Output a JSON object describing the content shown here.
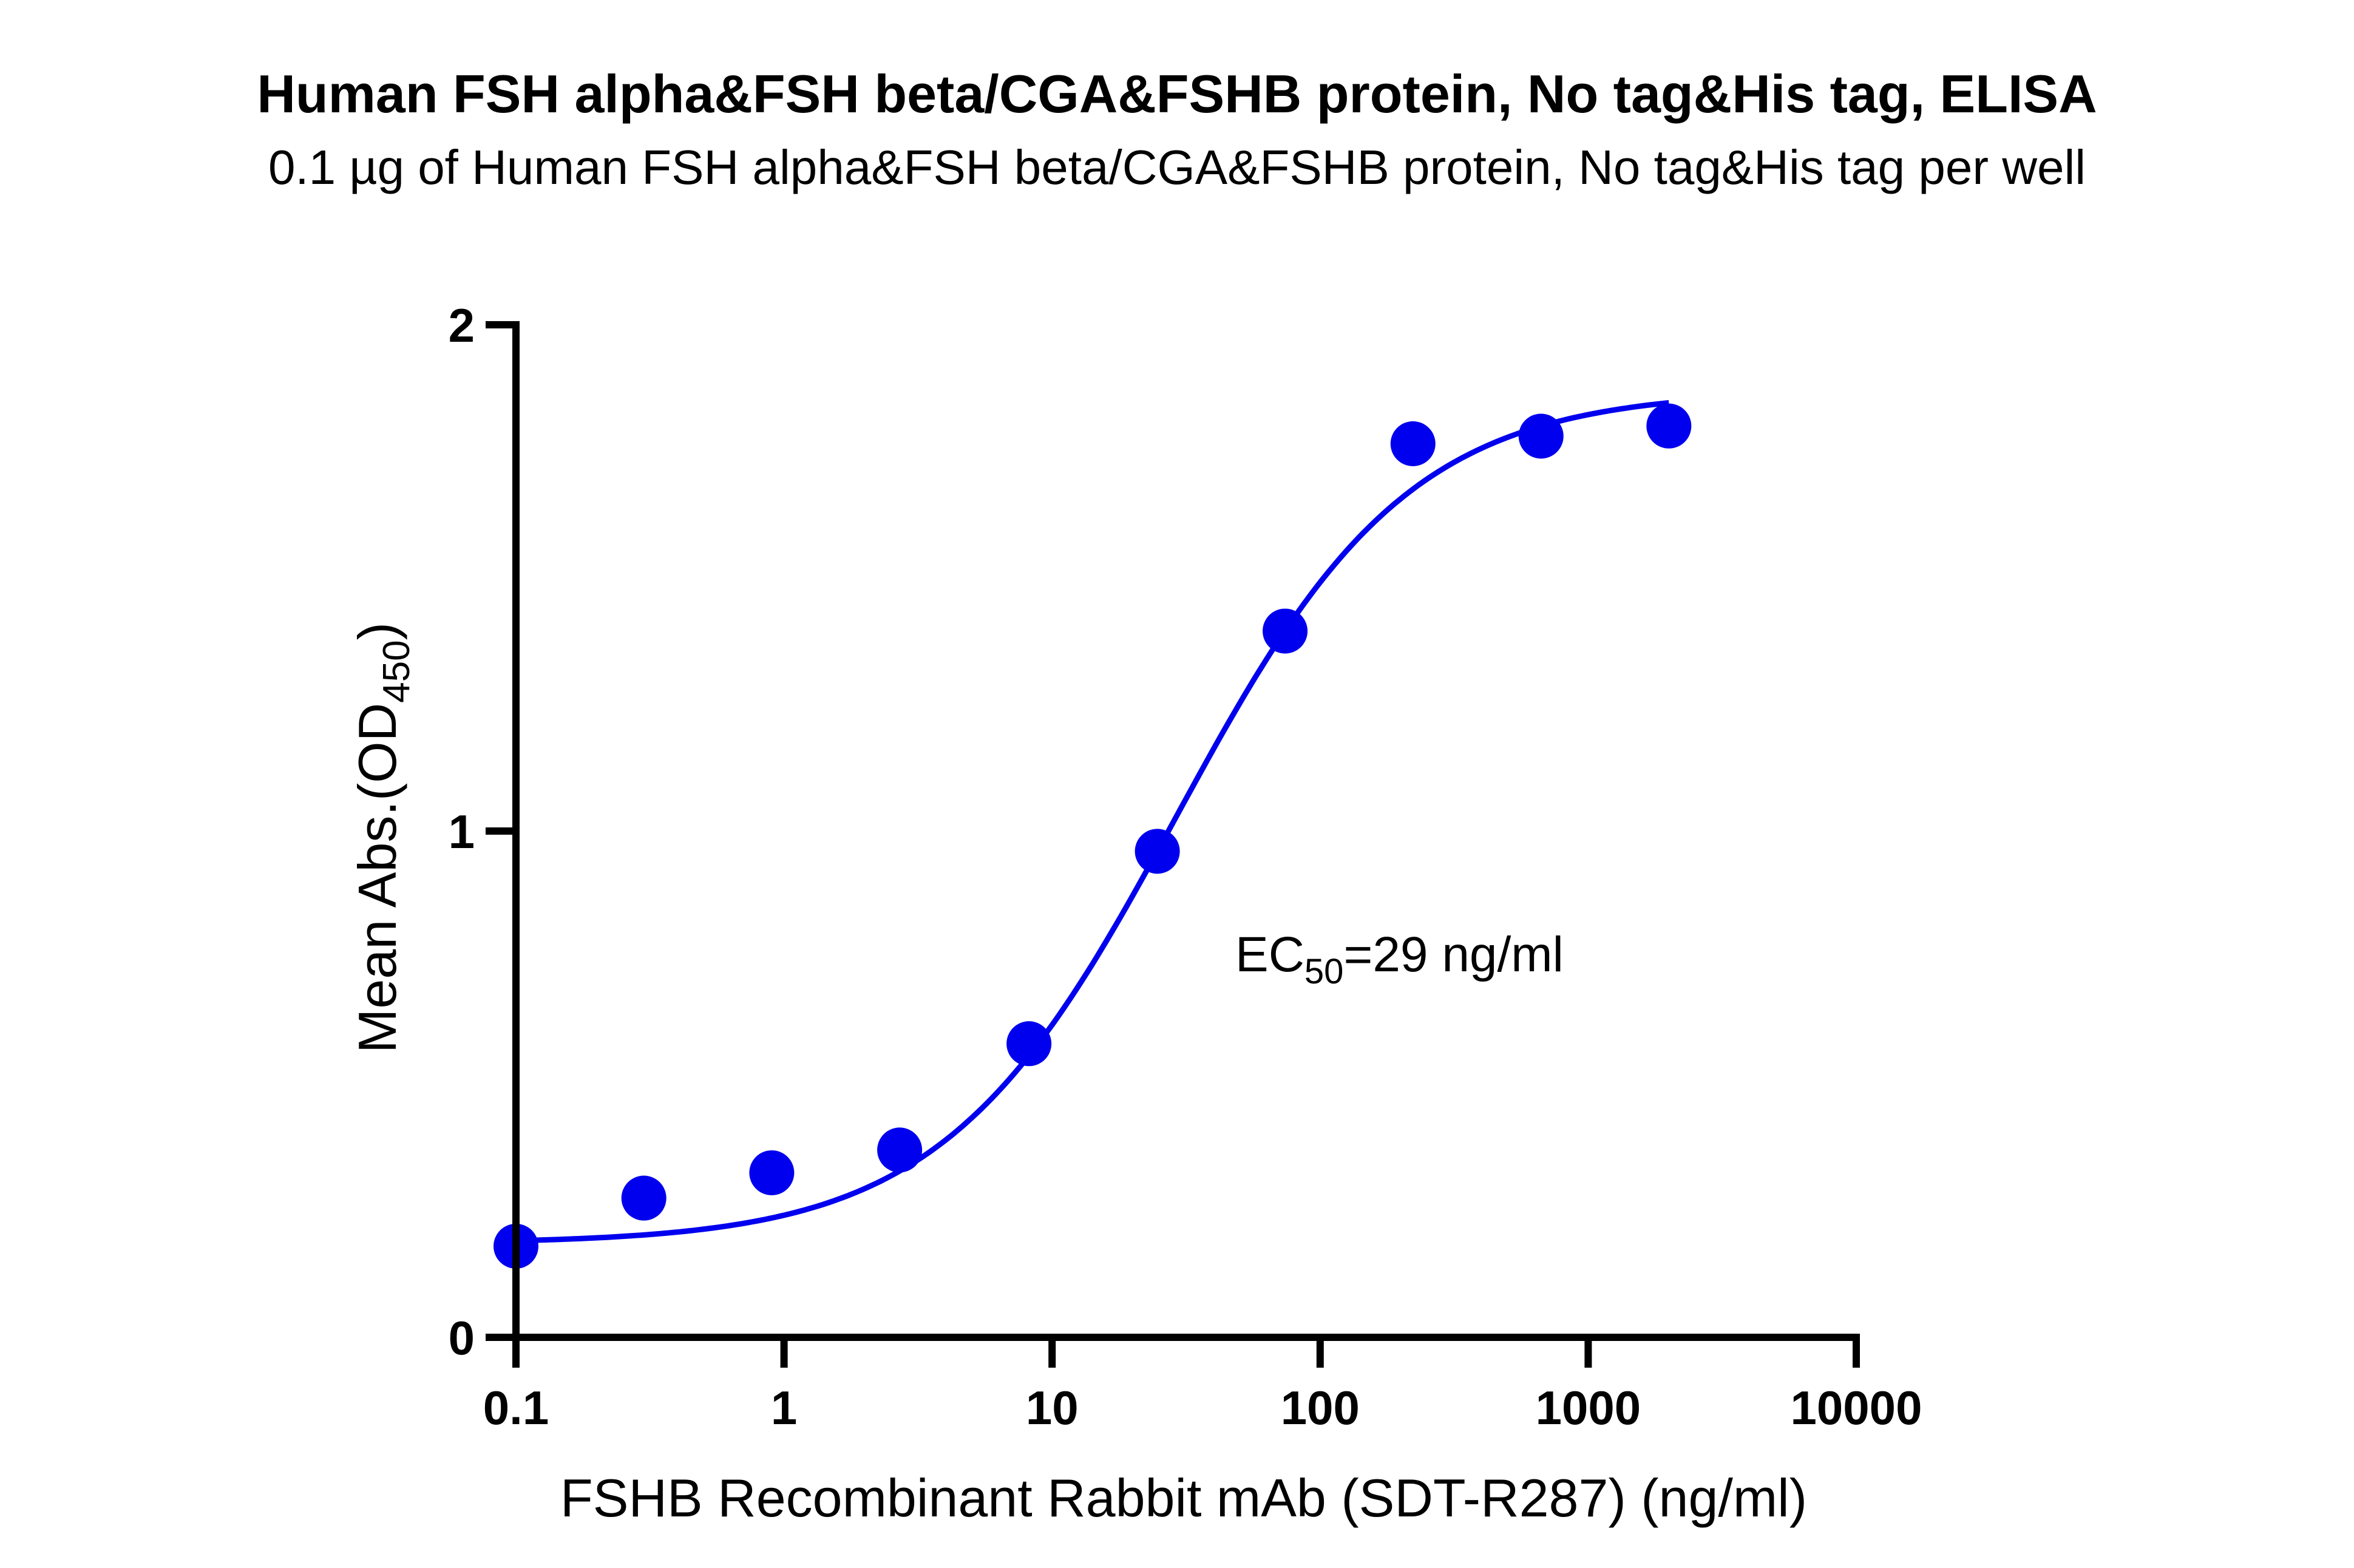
{
  "chart_data": {
    "type": "scatter",
    "title": "Human FSH alpha&FSH beta/CGA&FSHB protein, No tag&His tag, ELISA",
    "subtitle": "0.1 µg of Human FSH alpha&FSH beta/CGA&FSHB protein, No tag&His tag per well",
    "xlabel": "FSHB Recombinant Rabbit mAb (SDT-R287) (ng/ml)",
    "ylabel_main": "Mean Abs.(OD",
    "ylabel_sub": "450",
    "ylabel_close": ")",
    "x_scale": "log",
    "xlim": [
      0.1,
      10000
    ],
    "ylim": [
      0,
      2
    ],
    "x_ticks": [
      0.1,
      1,
      10,
      100,
      1000,
      10000
    ],
    "x_tick_labels": [
      "0.1",
      "1",
      "10",
      "100",
      "1000",
      "10000"
    ],
    "y_ticks": [
      0,
      1,
      2
    ],
    "y_tick_labels": [
      "0",
      "1",
      "2"
    ],
    "series": [
      {
        "x": [
          0.1,
          0.3,
          0.9,
          2.7,
          8.2,
          24.7,
          74,
          222,
          667,
          2000
        ],
        "y": [
          0.18,
          0.275,
          0.325,
          0.37,
          0.58,
          0.96,
          1.395,
          1.765,
          1.78,
          1.8
        ],
        "color": "#0000ee",
        "fit": {
          "model": "4PL",
          "bottom": 0.185,
          "top": 1.87,
          "ec50": 29,
          "hill": 1.0,
          "x_range": [
            0.1,
            2000
          ]
        }
      }
    ],
    "annotation": {
      "prefix": "EC",
      "sub": "50",
      "suffix": "=29 ng/ml"
    },
    "grid": false,
    "legend": "none"
  }
}
